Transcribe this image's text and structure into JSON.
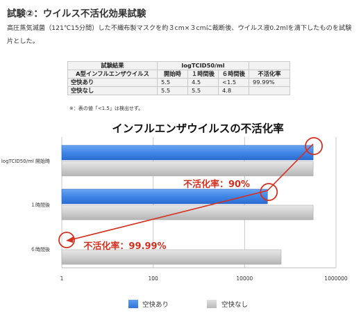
{
  "heading": "試験②：ウイルス不活化効果試験",
  "description": "高圧蒸気滅菌（121℃15分間）した不織布製マスクを約３cm×３cmに裁断後、ウイルス液0.2mlを滴下したものを試験片とした。",
  "table": {
    "corner_top": "試験結果",
    "corner_bottom": "A型インフルエンザウイルス",
    "group_header": "logTCID50/ml",
    "col_headers": [
      "開始時",
      "１時間後",
      "６時間後",
      "不活化率"
    ],
    "rows": [
      {
        "label": "空快あり",
        "cells": [
          "5.5",
          "4.5",
          "<1.5",
          "99.99%"
        ]
      },
      {
        "label": "空快なし",
        "cells": [
          "5.5",
          "5.5",
          "4.8",
          ""
        ]
      }
    ],
    "note": "※：表の値「<1.5」は検出せず。"
  },
  "colors": {
    "series1": "#3f86e6",
    "series2": "#cfcfcf",
    "annotation": "#d62f1e"
  },
  "chart_data": {
    "type": "bar",
    "orientation": "horizontal",
    "title": "インフルエンザウイルスの不活化率",
    "x_scale": "log",
    "xlim": [
      1,
      1000000
    ],
    "x_ticks": [
      "1",
      "100",
      "10000",
      "1000000"
    ],
    "categories": [
      "logTCID50/ml 開始時",
      "１時間後",
      "６時間後"
    ],
    "series": [
      {
        "name": "空快あり",
        "values": [
          316228,
          31623,
          1
        ]
      },
      {
        "name": "空快なし",
        "values": [
          316228,
          316228,
          63096
        ]
      }
    ],
    "annotations": [
      "不活化率：90%",
      "不活化率：99.99%"
    ],
    "legend_position": "bottom",
    "grid": true
  }
}
